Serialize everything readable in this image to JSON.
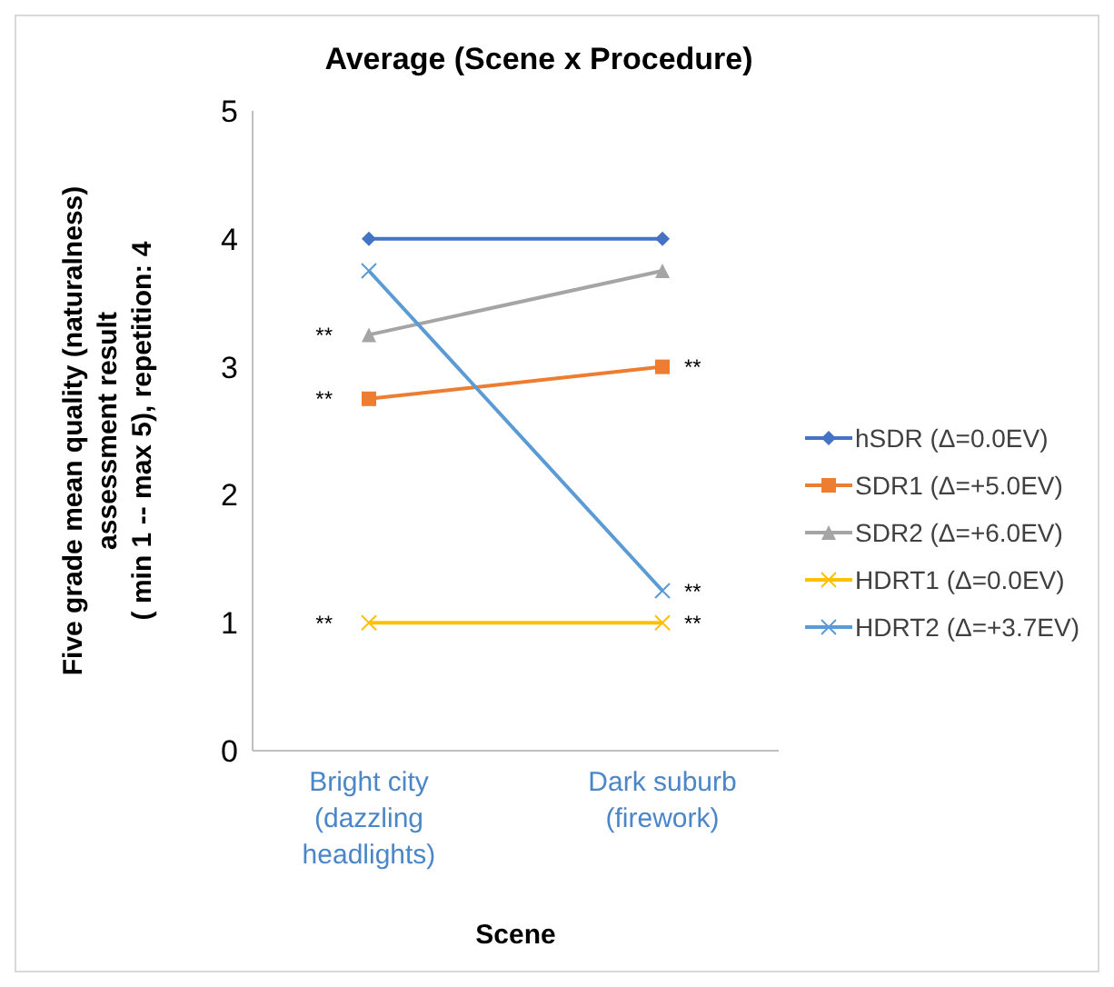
{
  "chart_data": {
    "type": "line",
    "title": "Average (Scene x Procedure)",
    "xlabel": "Scene",
    "ylabel": "Five grade mean quality (naturalness)\nassessment result\n( min 1 -- max 5), repetition: 4",
    "categories": [
      "Bright city\n(dazzling\nheadlights)",
      "Dark suburb\n(firework)"
    ],
    "series": [
      {
        "name": "hSDR (Δ=0.0EV)",
        "color": "#4472c4",
        "marker": "diamond",
        "values": [
          4,
          4
        ]
      },
      {
        "name": "SDR1 (Δ=+5.0EV)",
        "color": "#ed7d31",
        "marker": "square",
        "values": [
          2.75,
          3
        ]
      },
      {
        "name": "SDR2 (Δ=+6.0EV)",
        "color": "#a5a5a5",
        "marker": "triangle",
        "values": [
          3.25,
          3.75
        ]
      },
      {
        "name": "HDRT1 (Δ=0.0EV)",
        "color": "#ffc000",
        "marker": "cross",
        "values": [
          1,
          1
        ]
      },
      {
        "name": "HDRT2 (Δ=+3.7EV)",
        "color": "#5b9bd5",
        "marker": "cross",
        "values": [
          3.75,
          1.25
        ]
      }
    ],
    "ylim": [
      0,
      5
    ],
    "yticks": [
      0,
      1,
      2,
      3,
      4,
      5
    ],
    "grid": false,
    "legend": "right",
    "annotations": [
      {
        "text": "**",
        "x": "Bright city\n(dazzling\nheadlights)",
        "y": 3.25
      },
      {
        "text": "**",
        "x": "Bright city\n(dazzling\nheadlights)",
        "y": 2.75
      },
      {
        "text": "**",
        "x": "Bright city\n(dazzling\nheadlights)",
        "y": 1
      },
      {
        "text": "**",
        "x": "Dark suburb\n(firework)",
        "y": 3
      },
      {
        "text": "**",
        "x": "Dark suburb\n(firework)",
        "y": 1.25
      },
      {
        "text": "**",
        "x": "Dark suburb\n(firework)",
        "y": 1
      }
    ]
  }
}
